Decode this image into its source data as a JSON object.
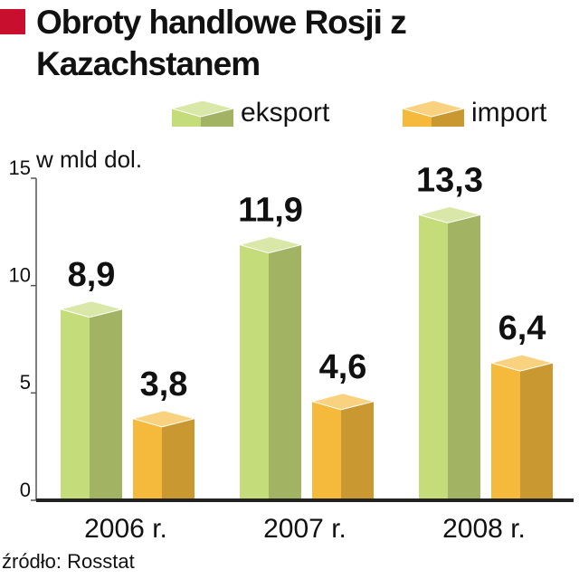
{
  "chart_data": {
    "type": "bar3d",
    "title": "Obroty handlowe Rosji z Kazachstanem",
    "y_label": "w mld dol.",
    "source": "źródło: Rosstat",
    "categories": [
      "2006 r.",
      "2007 r.",
      "2008 r."
    ],
    "series": [
      {
        "name": "eksport",
        "color": "#c5dc7a",
        "values": [
          8.9,
          11.9,
          13.3
        ],
        "value_labels": [
          "8,9",
          "11,9",
          "13,3"
        ]
      },
      {
        "name": "import",
        "color": "#f5b93c",
        "values": [
          3.8,
          4.6,
          6.4
        ],
        "value_labels": [
          "3,8",
          "4,6",
          "6,4"
        ]
      }
    ],
    "ylim": [
      0,
      15
    ],
    "yticks": [
      0,
      5,
      10,
      15
    ]
  }
}
